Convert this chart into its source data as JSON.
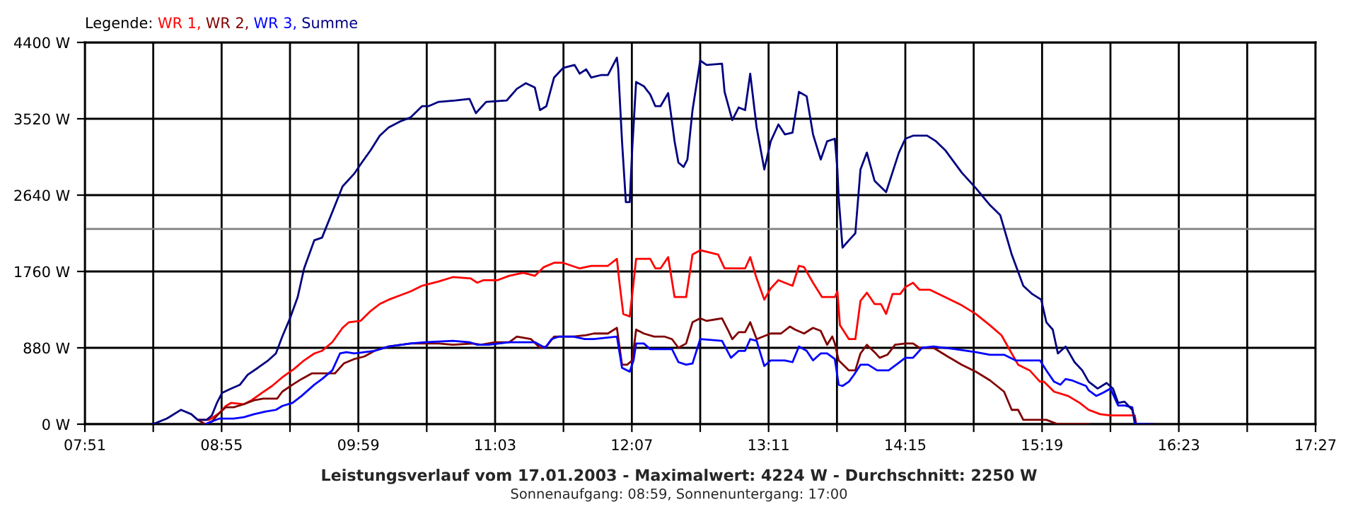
{
  "chart_data": {
    "type": "line",
    "title": "Leistungsverlauf vom 17.01.2003 - Maximalwert: 4224 W - Durchschnitt: 2250 W",
    "subtitle": "Sonnenaufgang: 08:59, Sonnenuntergang: 17:00",
    "legend_title": "Legende:",
    "legend": "top left",
    "grid": true,
    "marker": "none",
    "line_style": "solid",
    "xlim": [
      7.85,
      17.45
    ],
    "xticks": [
      {
        "value": 7.85,
        "label": "07:51"
      },
      {
        "value": 8.3833,
        "label": null
      },
      {
        "value": 8.9167,
        "label": "08:55"
      },
      {
        "value": 9.45,
        "label": null
      },
      {
        "value": 9.9833,
        "label": "09:59"
      },
      {
        "value": 10.5167,
        "label": null
      },
      {
        "value": 11.05,
        "label": "11:03"
      },
      {
        "value": 11.5833,
        "label": null
      },
      {
        "value": 12.1167,
        "label": "12:07"
      },
      {
        "value": 12.65,
        "label": null
      },
      {
        "value": 13.1833,
        "label": "13:11"
      },
      {
        "value": 13.7167,
        "label": null
      },
      {
        "value": 14.25,
        "label": "14:15"
      },
      {
        "value": 14.7833,
        "label": null
      },
      {
        "value": 15.3167,
        "label": "15:19"
      },
      {
        "value": 15.85,
        "label": null
      },
      {
        "value": 16.3833,
        "label": "16:23"
      },
      {
        "value": 16.9167,
        "label": null
      },
      {
        "value": 17.45,
        "label": "17:27"
      }
    ],
    "ylim": [
      0,
      4400
    ],
    "yticks": [
      {
        "value": 0,
        "label": "0 W"
      },
      {
        "value": 880,
        "label": "880 W"
      },
      {
        "value": 1760,
        "label": "1760 W"
      },
      {
        "value": 2640,
        "label": "2640 W"
      },
      {
        "value": 3520,
        "label": "3520 W"
      },
      {
        "value": 4400,
        "label": "4400 W"
      }
    ],
    "ref_lines": [
      {
        "axis": "y",
        "value": 2250,
        "color": "#808080"
      }
    ],
    "series": [
      {
        "name": "WR 1,",
        "color": "#ff0000",
        "x": [
          8.73,
          8.82,
          8.9,
          8.95,
          8.99,
          9.09,
          9.15,
          9.23,
          9.31,
          9.39,
          9.48,
          9.56,
          9.64,
          9.7,
          9.78,
          9.86,
          9.91,
          10.0,
          10.08,
          10.15,
          10.22,
          10.31,
          10.39,
          10.48,
          10.53,
          10.61,
          10.72,
          10.86,
          10.91,
          10.96,
          11.07,
          11.16,
          11.27,
          11.36,
          11.43,
          11.51,
          11.58,
          11.71,
          11.8,
          11.93,
          12.0,
          12.02,
          12.05,
          12.1,
          12.13,
          12.15,
          12.26,
          12.3,
          12.34,
          12.4,
          12.45,
          12.54,
          12.59,
          12.65,
          12.79,
          12.84,
          13.0,
          13.04,
          13.09,
          13.15,
          13.2,
          13.26,
          13.31,
          13.37,
          13.42,
          13.46,
          13.53,
          13.6,
          13.7,
          13.72,
          13.74,
          13.81,
          13.86,
          13.9,
          13.95,
          14.01,
          14.06,
          14.1,
          14.15,
          14.21,
          14.25,
          14.31,
          14.36,
          14.44,
          14.56,
          14.69,
          14.8,
          14.91,
          15.0,
          15.08,
          15.13,
          15.22,
          15.3,
          15.33,
          15.41,
          15.52,
          15.61,
          15.68,
          15.77,
          15.85,
          16.04,
          16.05
        ],
        "values": [
          50,
          50,
          130,
          210,
          245,
          230,
          275,
          360,
          440,
          540,
          635,
          735,
          815,
          845,
          945,
          1110,
          1175,
          1190,
          1305,
          1385,
          1435,
          1485,
          1530,
          1595,
          1615,
          1645,
          1695,
          1680,
          1630,
          1660,
          1660,
          1710,
          1745,
          1710,
          1810,
          1860,
          1860,
          1795,
          1825,
          1825,
          1905,
          1630,
          1270,
          1240,
          1630,
          1905,
          1905,
          1795,
          1795,
          1925,
          1465,
          1465,
          1955,
          2005,
          1955,
          1795,
          1795,
          1925,
          1680,
          1435,
          1565,
          1660,
          1630,
          1595,
          1825,
          1810,
          1630,
          1465,
          1465,
          1530,
          1140,
          980,
          980,
          1420,
          1515,
          1385,
          1385,
          1270,
          1500,
          1500,
          1580,
          1630,
          1550,
          1550,
          1465,
          1370,
          1270,
          1140,
          1025,
          815,
          685,
          620,
          490,
          490,
          375,
          325,
          245,
          165,
          115,
          100,
          100,
          0
        ]
      },
      {
        "name": "WR 2,",
        "color": "#800000",
        "x": [
          8.73,
          8.79,
          8.84,
          8.9,
          8.95,
          9.01,
          9.09,
          9.17,
          9.24,
          9.35,
          9.39,
          9.47,
          9.54,
          9.62,
          9.67,
          9.8,
          9.87,
          9.95,
          10.03,
          10.11,
          10.22,
          10.39,
          10.5,
          10.61,
          10.72,
          10.88,
          10.94,
          11.05,
          11.16,
          11.22,
          11.33,
          11.4,
          11.45,
          11.51,
          11.66,
          11.76,
          11.82,
          11.93,
          12.0,
          12.04,
          12.08,
          12.12,
          12.15,
          12.21,
          12.29,
          12.37,
          12.43,
          12.48,
          12.54,
          12.59,
          12.65,
          12.7,
          12.82,
          12.87,
          12.9,
          12.95,
          13.0,
          13.04,
          13.09,
          13.2,
          13.28,
          13.35,
          13.39,
          13.46,
          13.53,
          13.59,
          13.64,
          13.68,
          13.7,
          13.73,
          13.81,
          13.86,
          13.9,
          13.95,
          14.01,
          14.05,
          14.11,
          14.17,
          14.25,
          14.31,
          14.36,
          14.47,
          14.58,
          14.69,
          14.8,
          14.91,
          15.02,
          15.08,
          15.13,
          15.17,
          15.35,
          15.44,
          15.68
        ],
        "values": [
          50,
          0,
          30,
          130,
          195,
          195,
          230,
          275,
          295,
          295,
          375,
          455,
          520,
          585,
          585,
          585,
          700,
          750,
          780,
          845,
          895,
          930,
          930,
          930,
          915,
          930,
          915,
          945,
          945,
          1010,
          980,
          880,
          895,
          1010,
          1010,
          1025,
          1045,
          1045,
          1110,
          685,
          685,
          735,
          1090,
          1045,
          1010,
          1010,
          980,
          880,
          930,
          1175,
          1220,
          1190,
          1220,
          1075,
          980,
          1060,
          1060,
          1175,
          980,
          1045,
          1045,
          1125,
          1090,
          1045,
          1110,
          1075,
          915,
          1010,
          930,
          735,
          620,
          620,
          815,
          915,
          830,
          765,
          800,
          915,
          930,
          930,
          880,
          880,
          780,
          685,
          605,
          505,
          375,
          165,
          165,
          50,
          50,
          0,
          0
        ]
      },
      {
        "name": "WR 3,",
        "color": "#0000ff",
        "x": [
          8.79,
          8.84,
          8.9,
          9.01,
          9.09,
          9.17,
          9.26,
          9.34,
          9.39,
          9.47,
          9.54,
          9.59,
          9.64,
          9.7,
          9.78,
          9.84,
          9.89,
          9.95,
          10.03,
          10.11,
          10.22,
          10.39,
          10.5,
          10.72,
          10.85,
          10.91,
          11.0,
          11.16,
          11.36,
          11.44,
          11.49,
          11.55,
          11.66,
          11.75,
          11.82,
          12.0,
          12.04,
          12.1,
          12.13,
          12.15,
          12.21,
          12.26,
          12.43,
          12.48,
          12.54,
          12.59,
          12.65,
          12.82,
          12.89,
          12.95,
          13.0,
          13.04,
          13.09,
          13.15,
          13.2,
          13.31,
          13.37,
          13.42,
          13.48,
          13.53,
          13.59,
          13.64,
          13.7,
          13.73,
          13.76,
          13.81,
          13.85,
          13.9,
          13.96,
          14.03,
          14.12,
          14.25,
          14.31,
          14.38,
          14.47,
          14.64,
          14.8,
          14.91,
          15.02,
          15.11,
          15.24,
          15.3,
          15.35,
          15.41,
          15.46,
          15.5,
          15.55,
          15.6,
          15.66,
          15.68,
          15.74,
          15.79,
          15.85,
          15.91,
          15.96,
          16.02,
          16.04,
          16.13
        ],
        "values": [
          0,
          30,
          65,
          65,
          80,
          115,
          145,
          165,
          210,
          245,
          325,
          390,
          455,
          520,
          620,
          815,
          830,
          815,
          830,
          845,
          895,
          930,
          945,
          960,
          945,
          915,
          915,
          945,
          945,
          880,
          980,
          1010,
          1010,
          980,
          980,
          1010,
          650,
          605,
          735,
          930,
          930,
          865,
          865,
          715,
          685,
          700,
          980,
          960,
          765,
          845,
          845,
          980,
          960,
          670,
          735,
          735,
          715,
          895,
          845,
          735,
          815,
          815,
          750,
          455,
          440,
          490,
          570,
          685,
          685,
          620,
          620,
          765,
          765,
          880,
          895,
          865,
          830,
          800,
          800,
          735,
          735,
          735,
          620,
          490,
          455,
          520,
          505,
          475,
          440,
          390,
          325,
          360,
          410,
          215,
          215,
          195,
          0,
          0
        ]
      },
      {
        "name": "Summe",
        "color": "#000080",
        "x": [
          8.38,
          8.49,
          8.6,
          8.68,
          8.73,
          8.8,
          8.84,
          8.88,
          8.92,
          8.99,
          9.06,
          9.12,
          9.2,
          9.28,
          9.34,
          9.39,
          9.45,
          9.51,
          9.56,
          9.64,
          9.7,
          9.78,
          9.86,
          9.95,
          10.01,
          10.08,
          10.15,
          10.22,
          10.31,
          10.39,
          10.48,
          10.53,
          10.61,
          10.74,
          10.85,
          10.9,
          10.98,
          11.14,
          11.22,
          11.29,
          11.36,
          11.4,
          11.45,
          11.51,
          11.58,
          11.67,
          11.71,
          11.76,
          11.8,
          11.88,
          11.93,
          12.0,
          12.01,
          12.04,
          12.07,
          12.1,
          12.12,
          12.15,
          12.21,
          12.26,
          12.3,
          12.34,
          12.4,
          12.45,
          12.48,
          12.52,
          12.55,
          12.59,
          12.65,
          12.7,
          12.82,
          12.84,
          12.9,
          12.95,
          13.0,
          13.04,
          13.09,
          13.15,
          13.2,
          13.26,
          13.31,
          13.37,
          13.42,
          13.48,
          13.53,
          13.59,
          13.64,
          13.7,
          13.72,
          13.73,
          13.76,
          13.81,
          13.86,
          13.9,
          13.95,
          14.01,
          14.1,
          14.2,
          14.25,
          14.31,
          14.42,
          14.49,
          14.56,
          14.69,
          14.8,
          14.91,
          14.99,
          15.08,
          15.17,
          15.24,
          15.31,
          15.35,
          15.4,
          15.44,
          15.5,
          15.57,
          15.63,
          15.68,
          15.75,
          15.82,
          15.87,
          15.91,
          15.96,
          16.02,
          16.05,
          16.18
        ],
        "values": [
          0,
          65,
          165,
          115,
          50,
          50,
          100,
          245,
          360,
          410,
          455,
          570,
          650,
          735,
          815,
          1010,
          1220,
          1465,
          1795,
          2120,
          2150,
          2445,
          2740,
          2885,
          3015,
          3160,
          3325,
          3420,
          3490,
          3535,
          3665,
          3665,
          3715,
          3730,
          3750,
          3585,
          3715,
          3730,
          3865,
          3930,
          3880,
          3620,
          3665,
          3995,
          4105,
          4140,
          4040,
          4090,
          3995,
          4025,
          4025,
          4224,
          4105,
          3260,
          2560,
          2560,
          3180,
          3945,
          3895,
          3800,
          3665,
          3665,
          3815,
          3260,
          3015,
          2965,
          3050,
          3620,
          4190,
          4140,
          4155,
          3830,
          3505,
          3650,
          3620,
          4040,
          3420,
          2935,
          3260,
          3455,
          3340,
          3360,
          3830,
          3780,
          3340,
          3050,
          3260,
          3290,
          2935,
          2610,
          2035,
          2120,
          2200,
          2935,
          3130,
          2805,
          2675,
          3130,
          3290,
          3325,
          3325,
          3260,
          3160,
          2900,
          2720,
          2525,
          2410,
          1955,
          1595,
          1500,
          1435,
          1175,
          1090,
          815,
          895,
          715,
          620,
          490,
          410,
          475,
          410,
          245,
          260,
          165,
          0,
          0
        ]
      }
    ]
  }
}
